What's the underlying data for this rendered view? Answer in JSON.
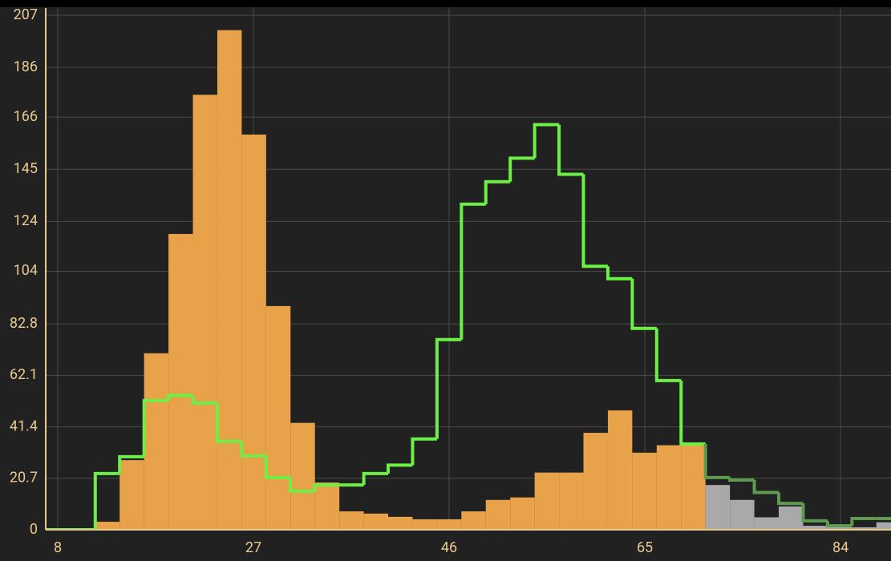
{
  "chart_data": {
    "type": "histogram",
    "bins": [
      6.9,
      9.27,
      11.64,
      14.01,
      16.38,
      18.75,
      21.12,
      23.49,
      25.86,
      28.23,
      30.6,
      32.97,
      35.34,
      37.71,
      40.08,
      42.45,
      44.82,
      47.19,
      49.56,
      51.93,
      54.3,
      56.67,
      59.04,
      61.41,
      63.78,
      66.15,
      68.52,
      70.89,
      73.26,
      75.63,
      78.0,
      80.37,
      82.74,
      85.11,
      87.48,
      89.85
    ],
    "series": [
      {
        "style": "filled",
        "values": [
          0,
          0,
          3.2,
          28,
          71,
          119,
          175,
          201,
          159,
          90,
          43,
          19,
          7.4,
          6.5,
          5.2,
          4.2,
          4.2,
          7.4,
          12,
          13,
          23,
          23,
          39,
          48,
          31,
          34,
          34,
          18,
          12,
          5,
          9.4,
          1.6,
          1,
          1,
          3
        ],
        "colors": [
          "#e8a24a",
          "#e8a24a",
          "#e8a24a",
          "#e8a24a",
          "#e8a24a",
          "#e8a24a",
          "#e8a24a",
          "#e8a24a",
          "#e8a24a",
          "#e8a24a",
          "#e8a24a",
          "#e8a24a",
          "#e8a24a",
          "#e8a24a",
          "#e8a24a",
          "#e8a24a",
          "#e8a24a",
          "#e8a24a",
          "#e8a24a",
          "#e8a24a",
          "#e8a24a",
          "#e8a24a",
          "#e8a24a",
          "#e8a24a",
          "#e8a24a",
          "#e8a24a",
          "#e8a24a",
          "#a9a9a9",
          "#a9a9a9",
          "#a9a9a9",
          "#a9a9a9",
          "#a9a9a9",
          "#a9a9a9",
          "#a9a9a9",
          "#a9a9a9"
        ]
      },
      {
        "style": "step",
        "values": [
          0,
          0,
          22.6,
          29.4,
          52,
          54,
          51,
          35.5,
          29.7,
          21,
          15.5,
          18,
          18,
          22.6,
          26,
          36.5,
          76.5,
          131,
          140,
          149.5,
          163,
          143,
          106,
          101,
          81,
          60,
          34.5,
          21,
          20,
          15,
          10.6,
          3.6,
          1.6,
          4.5,
          4.5
        ],
        "colors": [
          "#6cf046",
          "#6cf046",
          "#6cf046",
          "#6cf046",
          "#6cf046",
          "#6cf046",
          "#6cf046",
          "#6cf046",
          "#6cf046",
          "#6cf046",
          "#6cf046",
          "#6cf046",
          "#6cf046",
          "#6cf046",
          "#6cf046",
          "#6cf046",
          "#6cf046",
          "#6cf046",
          "#6cf046",
          "#6cf046",
          "#6cf046",
          "#6cf046",
          "#6cf046",
          "#6cf046",
          "#6cf046",
          "#6cf046",
          "#6cf046",
          "#5e9a50",
          "#5e9a50",
          "#5e9a50",
          "#5e9a50",
          "#5e9a50",
          "#5e9a50",
          "#5e9a50",
          "#5e9a50"
        ]
      }
    ],
    "xlim": [
      6.83,
      88.9
    ],
    "xticks": [
      8,
      27,
      46,
      65,
      84
    ],
    "ylim": [
      0,
      207
    ],
    "yticks": [
      0,
      20.7,
      41.4,
      62.1,
      82.8,
      104,
      124,
      145,
      166,
      186,
      207
    ],
    "grid": true
  }
}
